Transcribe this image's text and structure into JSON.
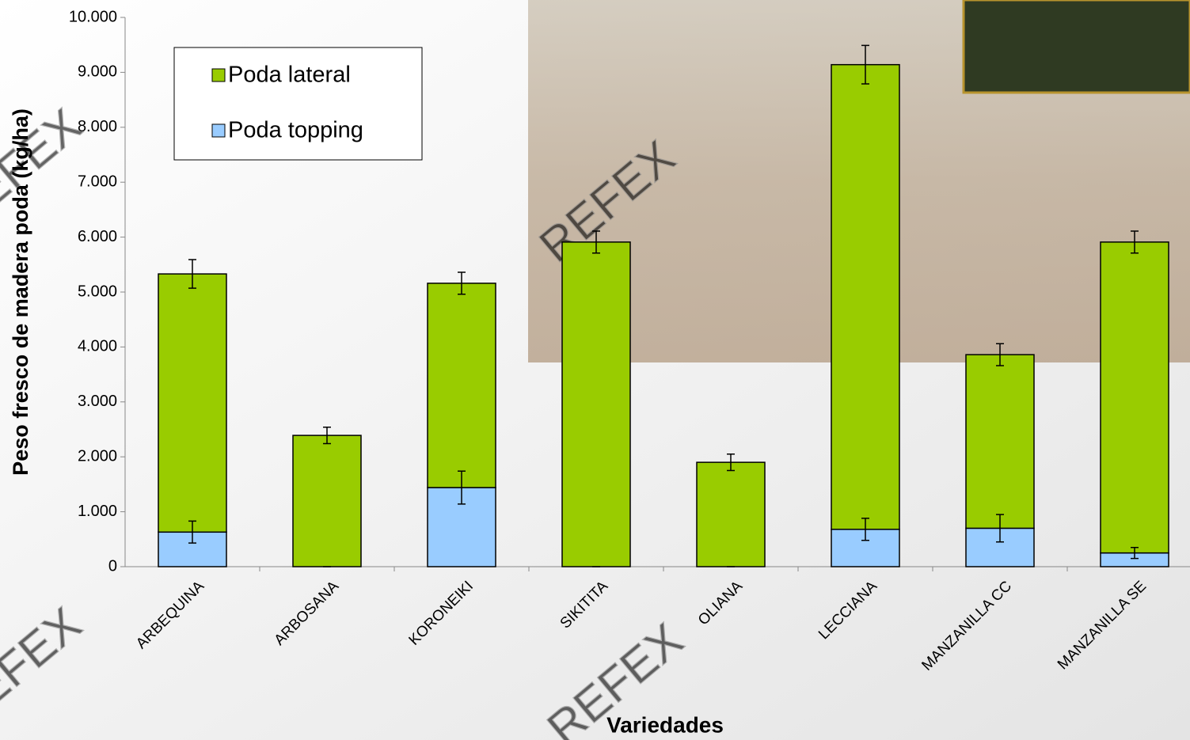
{
  "chart_data": {
    "type": "stacked_bar",
    "y_axis_label": "Peso fresco de madera poda (kg/ha)",
    "x_axis_label": "Variedades",
    "watermark": "REFEX",
    "categories": [
      "ARBEQUINA",
      "ARBOSANA",
      "KORONEIKI",
      "SIKITITA",
      "OLIANA",
      "LECCIANA",
      "MANZANILLA CC",
      "MANZANILLA SE"
    ],
    "series": [
      {
        "name": "Poda topping",
        "color": "#99ccff",
        "values": [
          630,
          0,
          1440,
          0,
          0,
          680,
          700,
          250
        ],
        "errors": [
          200,
          0,
          300,
          0,
          0,
          200,
          250,
          100
        ]
      },
      {
        "name": "Poda lateral",
        "color": "#99cc00",
        "values": [
          4700,
          2390,
          3720,
          5910,
          1900,
          8460,
          3160,
          5660
        ],
        "errors": [
          260,
          150,
          200,
          200,
          150,
          350,
          200,
          200
        ]
      }
    ],
    "ylim": [
      0,
      10000
    ],
    "yticks": [
      0,
      {
        "value": 1000,
        "label": "1.000"
      },
      {
        "value": 2000,
        "label": "2.000"
      },
      {
        "value": 3000,
        "label": "3.000"
      },
      {
        "value": 4000,
        "label": "4.000"
      },
      {
        "value": 5000,
        "label": "5.000"
      },
      {
        "value": 6000,
        "label": "6.000"
      },
      {
        "value": 7000,
        "label": "7.000"
      },
      {
        "value": 8000,
        "label": "8.000"
      },
      {
        "value": 9000,
        "label": "9.000"
      },
      {
        "value": 10000,
        "label": "10.000"
      }
    ],
    "legend": "top-left"
  }
}
